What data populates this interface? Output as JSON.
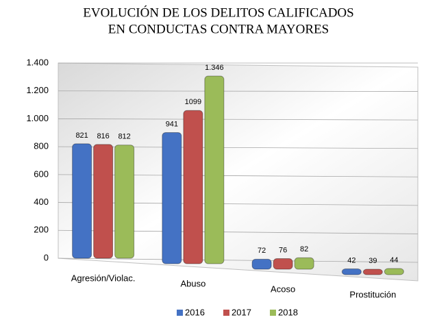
{
  "chart_data": {
    "type": "bar",
    "title": [
      "EVOLUCIÓN DE LOS DELITOS CALIFICADOS",
      "EN CONDUCTAS CONTRA MAYORES"
    ],
    "categories": [
      "Agresión/Violac.",
      "Abuso",
      "Acoso",
      "Prostitución"
    ],
    "series": [
      {
        "name": "2016",
        "color": "#4472c4",
        "values": [
          821,
          941,
          72,
          42
        ]
      },
      {
        "name": "2017",
        "color": "#c0504d",
        "values": [
          816,
          1099,
          76,
          39
        ]
      },
      {
        "name": "2018",
        "color": "#9bbb59",
        "values": [
          812,
          1346,
          82,
          44
        ],
        "value_labels": [
          "812",
          "1.346",
          "82",
          "44"
        ]
      }
    ],
    "ylim": [
      0,
      1400
    ],
    "yticks": [
      0,
      200,
      400,
      600,
      800,
      {
        "value": 1000,
        "label": "1.000"
      },
      {
        "value": 1200,
        "label": "1.200"
      },
      {
        "value": 1400,
        "label": "1.400"
      }
    ],
    "grid": true,
    "legend": "bottom"
  }
}
